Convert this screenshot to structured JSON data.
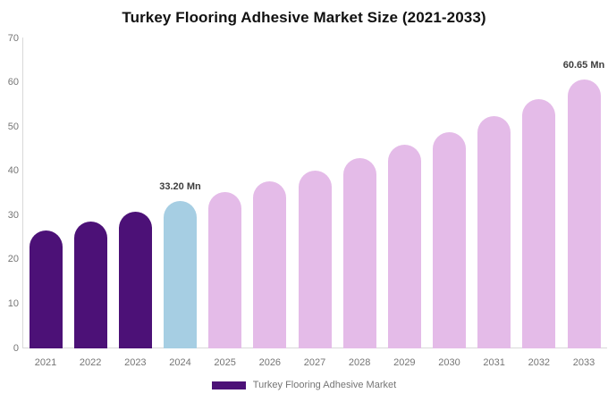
{
  "chart_data": {
    "type": "bar",
    "title": "Turkey Flooring Adhesive Market Size (2021-2033)",
    "unit": "Mn",
    "categories": [
      "2021",
      "2022",
      "2023",
      "2024",
      "2025",
      "2026",
      "2027",
      "2028",
      "2029",
      "2030",
      "2031",
      "2032",
      "2033"
    ],
    "values": [
      26.7,
      28.7,
      30.8,
      33.2,
      35.4,
      37.7,
      40.2,
      43.0,
      45.9,
      48.9,
      52.4,
      56.3,
      60.65
    ],
    "bar_colors": [
      "#4C1177",
      "#4C1177",
      "#4C1177",
      "#A6CEE3",
      "#E4BBE8",
      "#E4BBE8",
      "#E4BBE8",
      "#E4BBE8",
      "#E4BBE8",
      "#E4BBE8",
      "#E4BBE8",
      "#E4BBE8",
      "#E4BBE8"
    ],
    "annotations": [
      {
        "category": "2024",
        "text": "33.20 Mn"
      },
      {
        "category": "2033",
        "text": "60.65 Mn"
      }
    ],
    "ylim": [
      0,
      70
    ],
    "yticks": [
      0,
      10,
      20,
      30,
      40,
      50,
      60,
      70
    ],
    "grid": false,
    "legend": {
      "position": "bottom",
      "label": "Turkey Flooring Adhesive Market",
      "swatch_color": "#4C1177"
    },
    "style_colors": {
      "axis_line": "#d9d9d9",
      "tick_text": "#757575",
      "annotation_text": "#3d3d3d",
      "title_text": "#111111"
    }
  }
}
